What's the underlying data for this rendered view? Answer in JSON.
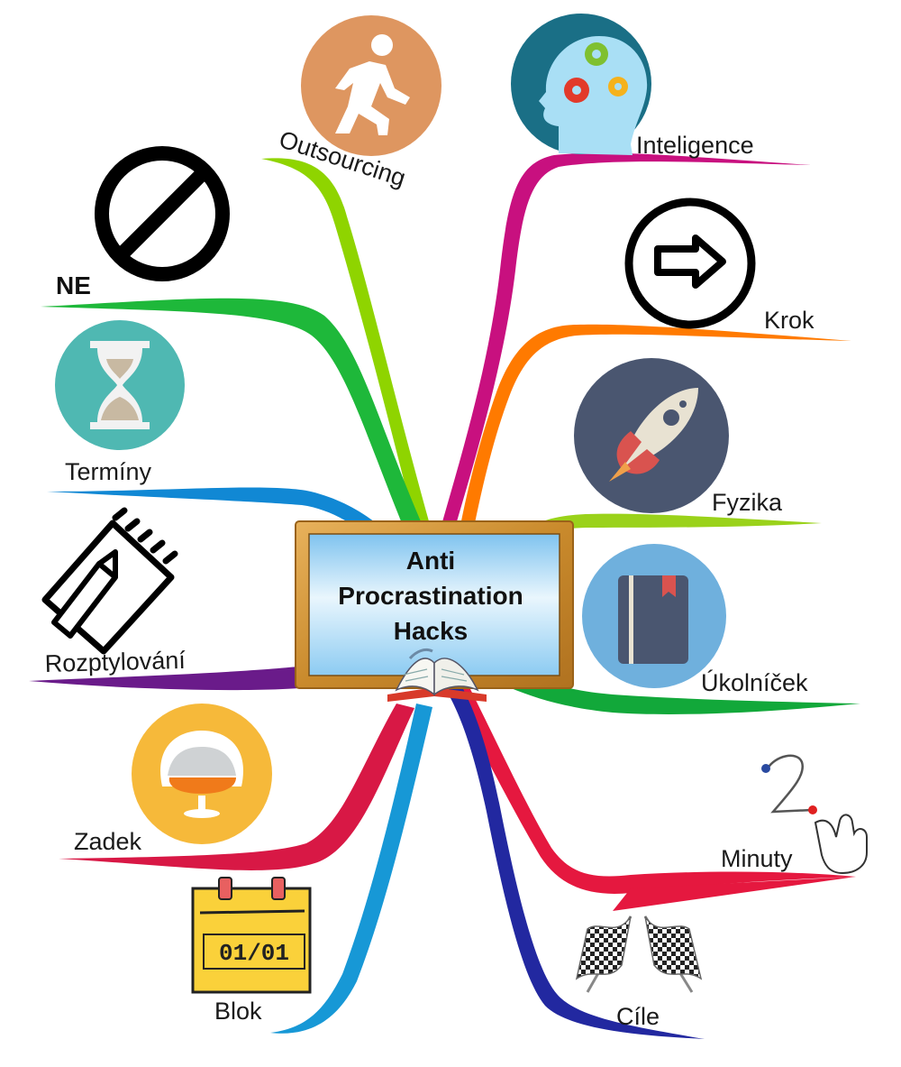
{
  "center": {
    "lines": [
      "Anti",
      "Procrastination",
      "Hacks"
    ]
  },
  "branches": {
    "outsourcing": {
      "label": "Outsourcing",
      "icon": "running-person-icon",
      "color": "#8fd400"
    },
    "inteligence": {
      "label": "Inteligence",
      "icon": "head-gears-icon",
      "color": "#c8107f"
    },
    "ne": {
      "label": "NE",
      "icon": "prohibited-icon",
      "color": "#1eb83a"
    },
    "krok": {
      "label": "Krok",
      "icon": "arrow-right-icon",
      "color": "#ff7a00"
    },
    "terminy": {
      "label": "Termíny",
      "icon": "hourglass-icon",
      "color": "#1188d4"
    },
    "fyzika": {
      "label": "Fyzika",
      "icon": "rocket-icon",
      "color": "#9ad21a"
    },
    "rozptylovani": {
      "label": "Rozptylování",
      "icon": "notepad-pencil-icon",
      "color": "#6a1b8a"
    },
    "ukolnicek": {
      "label": "Úkolníček",
      "icon": "notebook-icon",
      "color": "#12a83a"
    },
    "zadek": {
      "label": "Zadek",
      "icon": "egg-chair-icon",
      "color": "#d81845"
    },
    "minuty": {
      "label": "Minuty",
      "icon": "two-minutes-icon",
      "color": "#e5183f"
    },
    "blok": {
      "label": "Blok",
      "icon": "calendar-icon",
      "color": "#1798d6"
    },
    "cile": {
      "label": "Cíle",
      "icon": "checkered-flags-icon",
      "color": "#2228a0"
    }
  },
  "calendar_text": "01/01",
  "minutes_digit": "2"
}
